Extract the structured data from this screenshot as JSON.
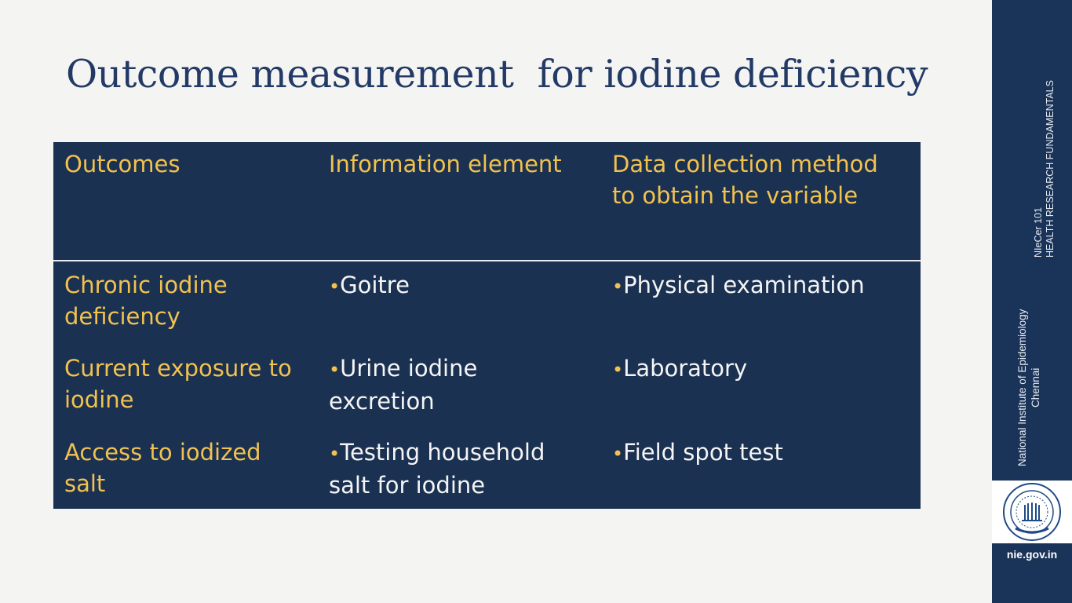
{
  "slide": {
    "title": "Outcome measurement  for iodine deficiency",
    "bullet": "•",
    "table": {
      "headers": [
        "Outcomes",
        "Information element",
        "Data collection method\nto obtain the variable"
      ],
      "rows": [
        {
          "outcome": "Chronic iodine\ndeficiency",
          "information": "Goitre",
          "method": "Physical examination"
        },
        {
          "outcome": "Current exposure to\niodine",
          "information": "Urine iodine\nexcretion",
          "method": "Laboratory"
        },
        {
          "outcome": "Access to iodized\nsalt",
          "information": "Testing household\nsalt for iodine",
          "method": "Field spot test"
        }
      ]
    }
  },
  "sidebar": {
    "course": "NIeCer 101\nHEALTH RESEARCH FUNDAMENTALS",
    "institute": "National Institute of Epidemiology\nChennai",
    "url": "nie.gov.in",
    "logo_icon": "icmr-seal-icon"
  },
  "colors": {
    "title": "#233a66",
    "table_background": "#1b3152",
    "accent_yellow": "#f2c24f",
    "sidebar": "#1a3358"
  }
}
